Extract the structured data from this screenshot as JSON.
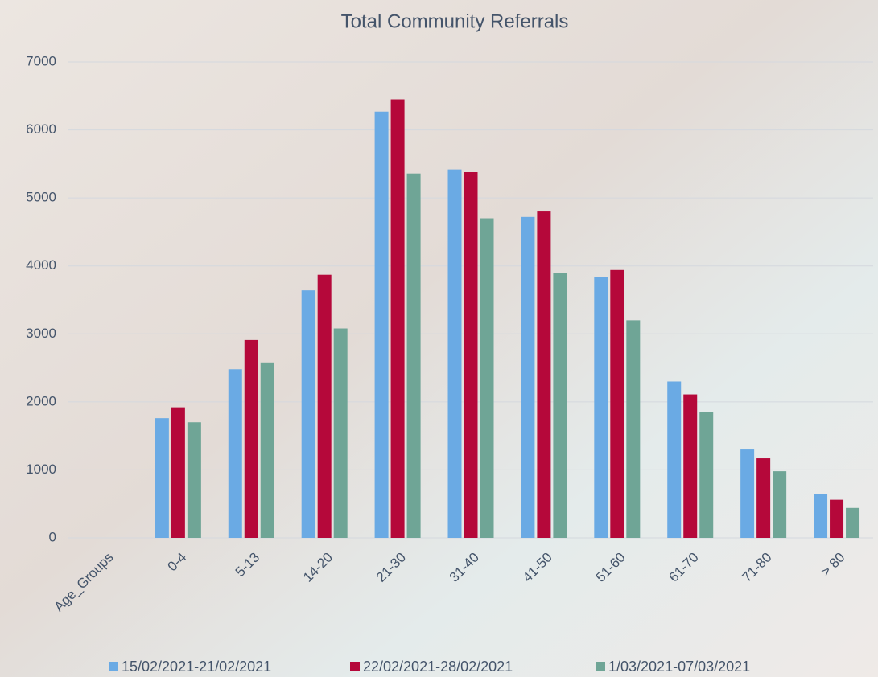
{
  "chart_data": {
    "type": "bar",
    "title": "Total Community Referrals",
    "categories": [
      "Age_Groups",
      "0-4",
      "5-13",
      "14-20",
      "21-30",
      "31-40",
      "41-50",
      "51-60",
      "61-70",
      "71-80",
      "> 80"
    ],
    "series": [
      {
        "name": "15/02/2021-21/02/2021",
        "color": "#6aaae4",
        "values": [
          null,
          1760,
          2480,
          3640,
          6270,
          5420,
          4720,
          3840,
          2300,
          1300,
          640
        ]
      },
      {
        "name": "22/02/2021-28/02/2021",
        "color": "#b5083a",
        "values": [
          null,
          1920,
          2910,
          3870,
          6450,
          5380,
          4800,
          3940,
          2110,
          1170,
          560
        ]
      },
      {
        "name": "1/03/2021-07/03/2021",
        "color": "#6fa596",
        "values": [
          null,
          1700,
          2580,
          3080,
          5360,
          4700,
          3900,
          3200,
          1850,
          980,
          440
        ]
      }
    ],
    "ylim": [
      0,
      7000
    ],
    "yticks": [
      0,
      1000,
      2000,
      3000,
      4000,
      5000,
      6000,
      7000
    ],
    "grid": true,
    "legend": "bottom"
  }
}
